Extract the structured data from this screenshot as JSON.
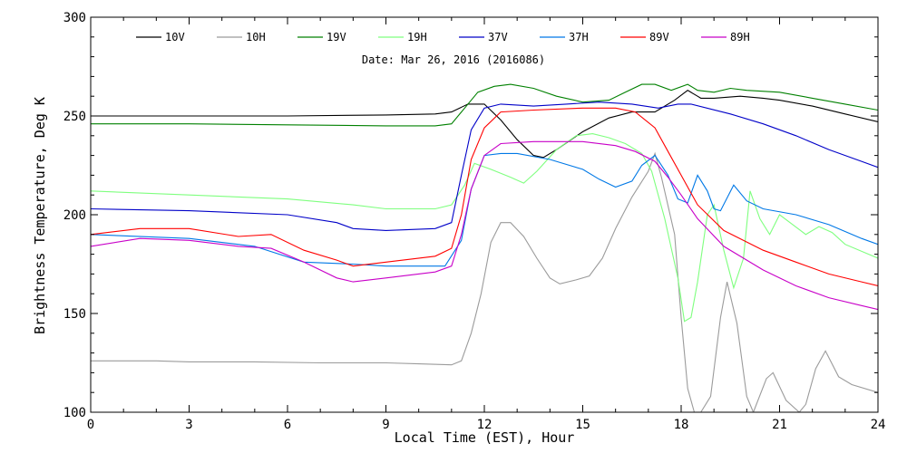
{
  "chart_data": {
    "type": "line",
    "title": "",
    "annotation": "Date: Mar 26, 2016 (2016086)",
    "xlabel": "Local Time (EST), Hour",
    "ylabel": "Brightness Temperature, Deg K",
    "xlim": [
      0,
      24
    ],
    "ylim": [
      100,
      300
    ],
    "xticks": [
      0,
      3,
      6,
      9,
      12,
      15,
      18,
      21,
      24
    ],
    "yticks": [
      100,
      150,
      200,
      250,
      300
    ],
    "grid": false,
    "legend_position": "top",
    "series": [
      {
        "name": "10V",
        "color": "#000000",
        "points": [
          [
            0,
            250
          ],
          [
            3,
            250
          ],
          [
            6,
            250
          ],
          [
            9,
            250.5
          ],
          [
            10.5,
            251
          ],
          [
            11,
            252
          ],
          [
            11.5,
            256
          ],
          [
            12,
            256
          ],
          [
            12.5,
            248
          ],
          [
            13,
            238
          ],
          [
            13.5,
            230
          ],
          [
            13.8,
            229
          ],
          [
            14.2,
            233
          ],
          [
            15,
            242
          ],
          [
            15.8,
            249
          ],
          [
            16.5,
            252
          ],
          [
            17.2,
            252
          ],
          [
            17.8,
            258
          ],
          [
            18.2,
            263
          ],
          [
            18.5,
            260
          ],
          [
            18.6,
            259
          ],
          [
            19,
            259
          ],
          [
            19.8,
            260
          ],
          [
            20.5,
            259
          ],
          [
            21,
            258
          ],
          [
            22,
            255
          ],
          [
            23,
            251
          ],
          [
            24,
            247
          ]
        ]
      },
      {
        "name": "10H",
        "color": "#9b9b9b",
        "points": [
          [
            0,
            126
          ],
          [
            2,
            126
          ],
          [
            3,
            125.5
          ],
          [
            5,
            125.5
          ],
          [
            7,
            125
          ],
          [
            9,
            125
          ],
          [
            10,
            124.5
          ],
          [
            11,
            124
          ],
          [
            11.3,
            126
          ],
          [
            11.6,
            140
          ],
          [
            11.9,
            160
          ],
          [
            12.2,
            186
          ],
          [
            12.5,
            196
          ],
          [
            12.8,
            196
          ],
          [
            13.2,
            189
          ],
          [
            13.6,
            178
          ],
          [
            14,
            168
          ],
          [
            14.3,
            165
          ],
          [
            14.8,
            167
          ],
          [
            15.2,
            169
          ],
          [
            15.6,
            178
          ],
          [
            16,
            193
          ],
          [
            16.5,
            209
          ],
          [
            17,
            222
          ],
          [
            17.2,
            231
          ],
          [
            17.4,
            219
          ],
          [
            17.8,
            190
          ],
          [
            18,
            148
          ],
          [
            18.2,
            112
          ],
          [
            18.4,
            100
          ],
          [
            18.6,
            100
          ],
          [
            18.9,
            108
          ],
          [
            19.2,
            148
          ],
          [
            19.4,
            166
          ],
          [
            19.7,
            145
          ],
          [
            20,
            108
          ],
          [
            20.2,
            100
          ],
          [
            20.6,
            117
          ],
          [
            20.8,
            120
          ],
          [
            21.2,
            106
          ],
          [
            21.6,
            100
          ],
          [
            21.8,
            104
          ],
          [
            22.1,
            122
          ],
          [
            22.4,
            131
          ],
          [
            22.8,
            118
          ],
          [
            23.2,
            114
          ],
          [
            24,
            110
          ]
        ]
      },
      {
        "name": "19V",
        "color": "#008000",
        "points": [
          [
            0,
            246
          ],
          [
            3,
            246
          ],
          [
            6,
            245.5
          ],
          [
            9,
            245
          ],
          [
            10.5,
            245
          ],
          [
            11,
            246
          ],
          [
            11.4,
            254
          ],
          [
            11.8,
            262
          ],
          [
            12.3,
            265
          ],
          [
            12.8,
            266
          ],
          [
            13.5,
            264
          ],
          [
            14.2,
            260
          ],
          [
            15,
            257
          ],
          [
            15.8,
            258
          ],
          [
            16.3,
            262
          ],
          [
            16.8,
            266
          ],
          [
            17.2,
            266
          ],
          [
            17.7,
            263
          ],
          [
            18.2,
            266
          ],
          [
            18.5,
            263
          ],
          [
            19,
            262
          ],
          [
            19.5,
            264
          ],
          [
            20,
            263
          ],
          [
            21,
            262
          ],
          [
            22,
            259
          ],
          [
            23,
            256
          ],
          [
            24,
            253
          ]
        ]
      },
      {
        "name": "19H",
        "color": "#7fff7f",
        "points": [
          [
            0,
            212
          ],
          [
            3,
            210
          ],
          [
            6,
            208
          ],
          [
            8,
            205
          ],
          [
            9,
            203
          ],
          [
            10.5,
            203
          ],
          [
            11,
            205
          ],
          [
            11.4,
            215
          ],
          [
            11.7,
            226
          ],
          [
            12.2,
            223
          ],
          [
            12.8,
            219
          ],
          [
            13.2,
            216
          ],
          [
            13.6,
            222
          ],
          [
            14.2,
            233
          ],
          [
            14.8,
            240
          ],
          [
            15.3,
            241
          ],
          [
            15.8,
            239
          ],
          [
            16.3,
            236
          ],
          [
            16.8,
            231
          ],
          [
            17.1,
            222
          ],
          [
            17.5,
            198
          ],
          [
            17.9,
            168
          ],
          [
            18.1,
            146
          ],
          [
            18.3,
            148
          ],
          [
            18.5,
            166
          ],
          [
            18.8,
            200
          ],
          [
            19.0,
            205
          ],
          [
            19.3,
            182
          ],
          [
            19.6,
            163
          ],
          [
            19.9,
            178
          ],
          [
            20.1,
            212
          ],
          [
            20.4,
            198
          ],
          [
            20.7,
            190
          ],
          [
            21.0,
            200
          ],
          [
            21.4,
            195
          ],
          [
            21.8,
            190
          ],
          [
            22.2,
            194
          ],
          [
            22.6,
            191
          ],
          [
            23,
            185
          ],
          [
            24,
            178
          ]
        ]
      },
      {
        "name": "37V",
        "color": "#0000c8",
        "points": [
          [
            0,
            203
          ],
          [
            3,
            202
          ],
          [
            6,
            200
          ],
          [
            7.5,
            196
          ],
          [
            8,
            193
          ],
          [
            9,
            192
          ],
          [
            10.5,
            193
          ],
          [
            11,
            196
          ],
          [
            11.3,
            220
          ],
          [
            11.6,
            243
          ],
          [
            12,
            254
          ],
          [
            12.5,
            256
          ],
          [
            13.5,
            255
          ],
          [
            14.5,
            256
          ],
          [
            15.5,
            257
          ],
          [
            16.5,
            256
          ],
          [
            17.3,
            254
          ],
          [
            17.9,
            256
          ],
          [
            18.3,
            256
          ],
          [
            19.5,
            251
          ],
          [
            20.5,
            246
          ],
          [
            21.5,
            240
          ],
          [
            22.5,
            233
          ],
          [
            23.5,
            227
          ],
          [
            24,
            224
          ]
        ]
      },
      {
        "name": "37H",
        "color": "#0078e6",
        "points": [
          [
            0,
            190
          ],
          [
            3,
            188
          ],
          [
            5,
            184
          ],
          [
            6.5,
            176
          ],
          [
            8,
            175
          ],
          [
            9,
            174
          ],
          [
            10.8,
            174
          ],
          [
            11.3,
            187
          ],
          [
            11.6,
            213
          ],
          [
            12,
            230
          ],
          [
            12.5,
            231
          ],
          [
            13,
            231
          ],
          [
            14,
            228
          ],
          [
            15,
            223
          ],
          [
            15.5,
            218
          ],
          [
            16,
            214
          ],
          [
            16.5,
            217
          ],
          [
            16.8,
            225
          ],
          [
            17.2,
            230
          ],
          [
            17.6,
            220
          ],
          [
            17.9,
            208
          ],
          [
            18.2,
            206
          ],
          [
            18.5,
            220
          ],
          [
            18.8,
            212
          ],
          [
            19,
            203
          ],
          [
            19.2,
            202
          ],
          [
            19.6,
            215
          ],
          [
            20,
            207
          ],
          [
            20.5,
            203
          ],
          [
            21.5,
            200
          ],
          [
            22.5,
            195
          ],
          [
            23.5,
            188
          ],
          [
            24,
            185
          ]
        ]
      },
      {
        "name": "89V",
        "color": "#ff0000",
        "points": [
          [
            0,
            190
          ],
          [
            1.5,
            193
          ],
          [
            3,
            193
          ],
          [
            4.5,
            189
          ],
          [
            5.5,
            190
          ],
          [
            6.5,
            182
          ],
          [
            7.5,
            177
          ],
          [
            8,
            174
          ],
          [
            9,
            176
          ],
          [
            10.5,
            179
          ],
          [
            11,
            183
          ],
          [
            11.3,
            200
          ],
          [
            11.6,
            228
          ],
          [
            12,
            244
          ],
          [
            12.5,
            252
          ],
          [
            13.5,
            253
          ],
          [
            15,
            254
          ],
          [
            16,
            254
          ],
          [
            16.6,
            252
          ],
          [
            17.2,
            244
          ],
          [
            17.6,
            232
          ],
          [
            18,
            220
          ],
          [
            18.5,
            205
          ],
          [
            19.3,
            192
          ],
          [
            20.5,
            182
          ],
          [
            21.5,
            176
          ],
          [
            22.5,
            170
          ],
          [
            23.5,
            166
          ],
          [
            24,
            164
          ]
        ]
      },
      {
        "name": "89H",
        "color": "#c800c8",
        "points": [
          [
            0,
            184
          ],
          [
            1.5,
            188
          ],
          [
            3,
            187
          ],
          [
            4.5,
            184
          ],
          [
            5.5,
            183
          ],
          [
            6.5,
            176
          ],
          [
            7.5,
            168
          ],
          [
            8,
            166
          ],
          [
            9,
            168
          ],
          [
            10.5,
            171
          ],
          [
            11,
            174
          ],
          [
            11.3,
            190
          ],
          [
            11.6,
            213
          ],
          [
            12,
            230
          ],
          [
            12.5,
            236
          ],
          [
            13.5,
            237
          ],
          [
            15,
            237
          ],
          [
            16,
            235
          ],
          [
            16.6,
            232
          ],
          [
            17.2,
            227
          ],
          [
            17.6,
            219
          ],
          [
            18,
            210
          ],
          [
            18.5,
            198
          ],
          [
            19.3,
            184
          ],
          [
            20.5,
            172
          ],
          [
            21.5,
            164
          ],
          [
            22.5,
            158
          ],
          [
            23.5,
            154
          ],
          [
            24,
            152
          ]
        ]
      }
    ]
  }
}
